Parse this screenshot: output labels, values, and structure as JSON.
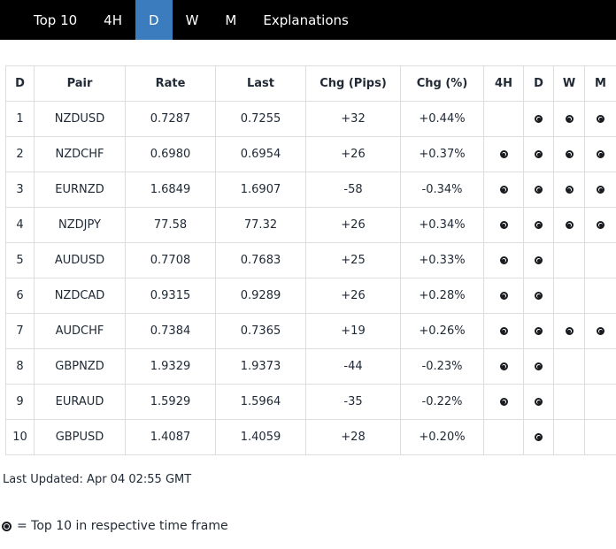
{
  "nav": {
    "items": [
      {
        "label": "Top 10",
        "active": false
      },
      {
        "label": "4H",
        "active": false
      },
      {
        "label": "D",
        "active": true
      },
      {
        "label": "W",
        "active": false
      },
      {
        "label": "M",
        "active": false
      },
      {
        "label": "Explanations",
        "active": false
      }
    ]
  },
  "colors": {
    "nav_bg": "#000000",
    "nav_text": "#ffffff",
    "active_tab_bg": "#3a7cbe",
    "table_border": "#dddddd",
    "text": "#212a35",
    "marker": "#16191d"
  },
  "icons": {
    "top10_marker": "circled-dot-icon"
  },
  "table": {
    "headers": [
      "D",
      "Pair",
      "Rate",
      "Last",
      "Chg (Pips)",
      "Chg (%)",
      "4H",
      "D",
      "W",
      "M"
    ],
    "rows": [
      {
        "rank": "1",
        "pair": "NZDUSD",
        "rate": "0.7287",
        "last": "0.7255",
        "chg_pips": "+32",
        "chg_pct": "+0.44%",
        "tf_4h": false,
        "tf_d": true,
        "tf_w": true,
        "tf_m": true
      },
      {
        "rank": "2",
        "pair": "NZDCHF",
        "rate": "0.6980",
        "last": "0.6954",
        "chg_pips": "+26",
        "chg_pct": "+0.37%",
        "tf_4h": true,
        "tf_d": true,
        "tf_w": true,
        "tf_m": true
      },
      {
        "rank": "3",
        "pair": "EURNZD",
        "rate": "1.6849",
        "last": "1.6907",
        "chg_pips": "-58",
        "chg_pct": "-0.34%",
        "tf_4h": true,
        "tf_d": true,
        "tf_w": true,
        "tf_m": true
      },
      {
        "rank": "4",
        "pair": "NZDJPY",
        "rate": "77.58",
        "last": "77.32",
        "chg_pips": "+26",
        "chg_pct": "+0.34%",
        "tf_4h": true,
        "tf_d": true,
        "tf_w": true,
        "tf_m": true
      },
      {
        "rank": "5",
        "pair": "AUDUSD",
        "rate": "0.7708",
        "last": "0.7683",
        "chg_pips": "+25",
        "chg_pct": "+0.33%",
        "tf_4h": true,
        "tf_d": true,
        "tf_w": false,
        "tf_m": false
      },
      {
        "rank": "6",
        "pair": "NZDCAD",
        "rate": "0.9315",
        "last": "0.9289",
        "chg_pips": "+26",
        "chg_pct": "+0.28%",
        "tf_4h": true,
        "tf_d": true,
        "tf_w": false,
        "tf_m": false
      },
      {
        "rank": "7",
        "pair": "AUDCHF",
        "rate": "0.7384",
        "last": "0.7365",
        "chg_pips": "+19",
        "chg_pct": "+0.26%",
        "tf_4h": true,
        "tf_d": true,
        "tf_w": true,
        "tf_m": true
      },
      {
        "rank": "8",
        "pair": "GBPNZD",
        "rate": "1.9329",
        "last": "1.9373",
        "chg_pips": "-44",
        "chg_pct": "-0.23%",
        "tf_4h": true,
        "tf_d": true,
        "tf_w": false,
        "tf_m": false
      },
      {
        "rank": "9",
        "pair": "EURAUD",
        "rate": "1.5929",
        "last": "1.5964",
        "chg_pips": "-35",
        "chg_pct": "-0.22%",
        "tf_4h": true,
        "tf_d": true,
        "tf_w": false,
        "tf_m": false
      },
      {
        "rank": "10",
        "pair": "GBPUSD",
        "rate": "1.4087",
        "last": "1.4059",
        "chg_pips": "+28",
        "chg_pct": "+0.20%",
        "tf_4h": false,
        "tf_d": true,
        "tf_w": false,
        "tf_m": false
      }
    ]
  },
  "footer": {
    "last_updated": "Last Updated: Apr 04 02:55 GMT",
    "legend_text": "= Top 10 in respective time frame"
  }
}
